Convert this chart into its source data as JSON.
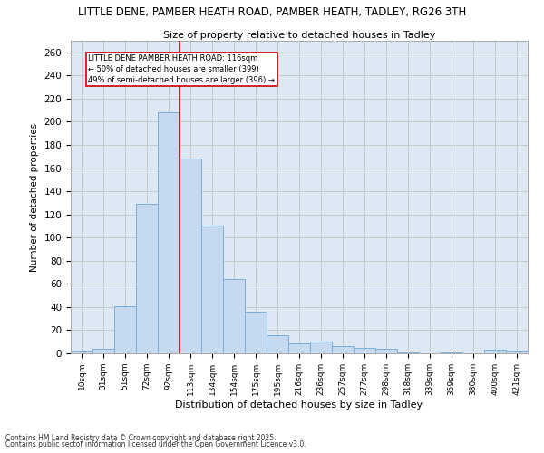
{
  "title_line1": "LITTLE DENE, PAMBER HEATH ROAD, PAMBER HEATH, TADLEY, RG26 3TH",
  "title_line2": "Size of property relative to detached houses in Tadley",
  "xlabel": "Distribution of detached houses by size in Tadley",
  "ylabel": "Number of detached properties",
  "categories": [
    "10sqm",
    "31sqm",
    "51sqm",
    "72sqm",
    "92sqm",
    "113sqm",
    "134sqm",
    "154sqm",
    "175sqm",
    "195sqm",
    "216sqm",
    "236sqm",
    "257sqm",
    "277sqm",
    "298sqm",
    "318sqm",
    "339sqm",
    "359sqm",
    "380sqm",
    "400sqm",
    "421sqm"
  ],
  "values": [
    2,
    4,
    41,
    129,
    208,
    168,
    110,
    64,
    36,
    16,
    9,
    10,
    6,
    5,
    4,
    1,
    0,
    1,
    0,
    3,
    2
  ],
  "bar_color": "#c5d9f0",
  "bar_edge_color": "#7bafd4",
  "grid_color": "#c8c8c8",
  "ax_bg_color": "#dce9f5",
  "background_color": "#ffffff",
  "annotation_text": "LITTLE DENE PAMBER HEATH ROAD: 116sqm\n← 50% of detached houses are smaller (399)\n49% of semi-detached houses are larger (396) →",
  "vline_color": "#cc0000",
  "annotation_box_edge": "#cc0000",
  "ylim": [
    0,
    270
  ],
  "yticks": [
    0,
    20,
    40,
    60,
    80,
    100,
    120,
    140,
    160,
    180,
    200,
    220,
    240,
    260
  ],
  "footer_line1": "Contains HM Land Registry data © Crown copyright and database right 2025.",
  "footer_line2": "Contains public sector information licensed under the Open Government Licence v3.0."
}
